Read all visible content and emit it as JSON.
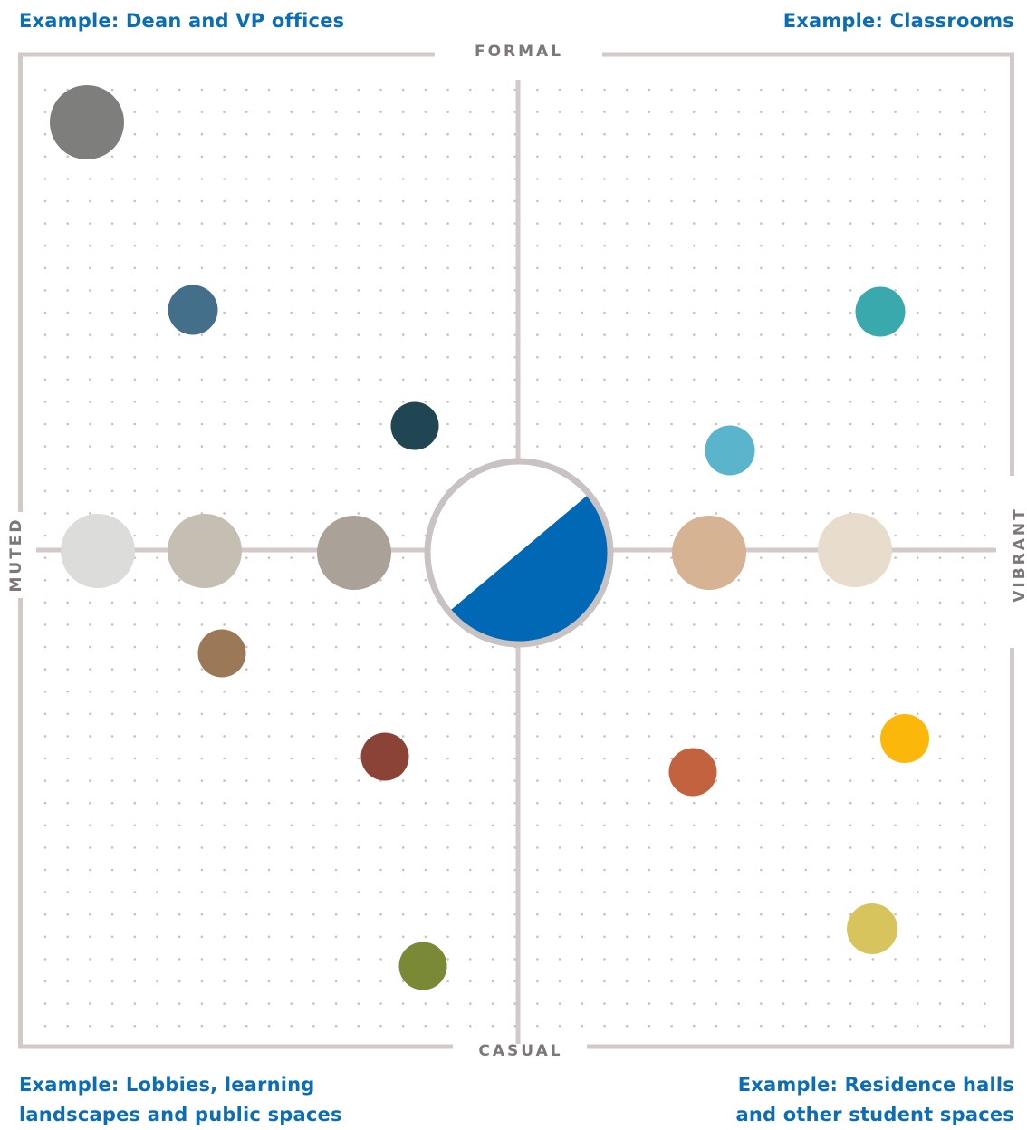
{
  "examples": {
    "top_left": "Example: Dean and VP offices",
    "top_right": "Example: Classrooms",
    "bottom_left": [
      "Example: Lobbies, learning",
      "landscapes and public spaces"
    ],
    "bottom_right": [
      "Example: Residence halls",
      "and other student spaces"
    ]
  },
  "axes": {
    "top": "FORMAL",
    "bottom": "CASUAL",
    "left": "MUTED",
    "right": "VIBRANT"
  },
  "colors": {
    "frame": "#d3c9c9",
    "dots": "#c9c1c1",
    "label_blue": "#0a6db5",
    "axis_text": "#7d7778",
    "center_fill": "#0068b5"
  },
  "center": {
    "fill": "#0068b5",
    "ring": "#c9c2c2"
  },
  "swatches": [
    {
      "name": "charcoal-gray",
      "color": "#7e7f7c",
      "quadrant": "muted-formal"
    },
    {
      "name": "slate-blue",
      "color": "#436f8b",
      "quadrant": "muted-formal"
    },
    {
      "name": "dark-teal",
      "color": "#1f4652",
      "quadrant": "muted-formal"
    },
    {
      "name": "teal",
      "color": "#3aa9ae",
      "quadrant": "vibrant-formal"
    },
    {
      "name": "sky-blue",
      "color": "#5ab5cc",
      "quadrant": "vibrant-formal"
    },
    {
      "name": "light-gray",
      "color": "#dcdcdb",
      "quadrant": "muted-axis"
    },
    {
      "name": "greige",
      "color": "#c5beb2",
      "quadrant": "muted-axis"
    },
    {
      "name": "taupe",
      "color": "#aaa298",
      "quadrant": "muted-axis"
    },
    {
      "name": "tan",
      "color": "#d6b393",
      "quadrant": "vibrant-axis"
    },
    {
      "name": "cream",
      "color": "#e8ddcd",
      "quadrant": "vibrant-axis"
    },
    {
      "name": "brown",
      "color": "#9b7956",
      "quadrant": "muted-casual"
    },
    {
      "name": "rust-red",
      "color": "#8b4338",
      "quadrant": "muted-casual"
    },
    {
      "name": "olive-green",
      "color": "#7a8935",
      "quadrant": "muted-casual"
    },
    {
      "name": "amber",
      "color": "#fbb80b",
      "quadrant": "vibrant-casual"
    },
    {
      "name": "burnt-orange",
      "color": "#c3623e",
      "quadrant": "vibrant-casual"
    },
    {
      "name": "mustard",
      "color": "#d7c45c",
      "quadrant": "vibrant-casual"
    }
  ]
}
